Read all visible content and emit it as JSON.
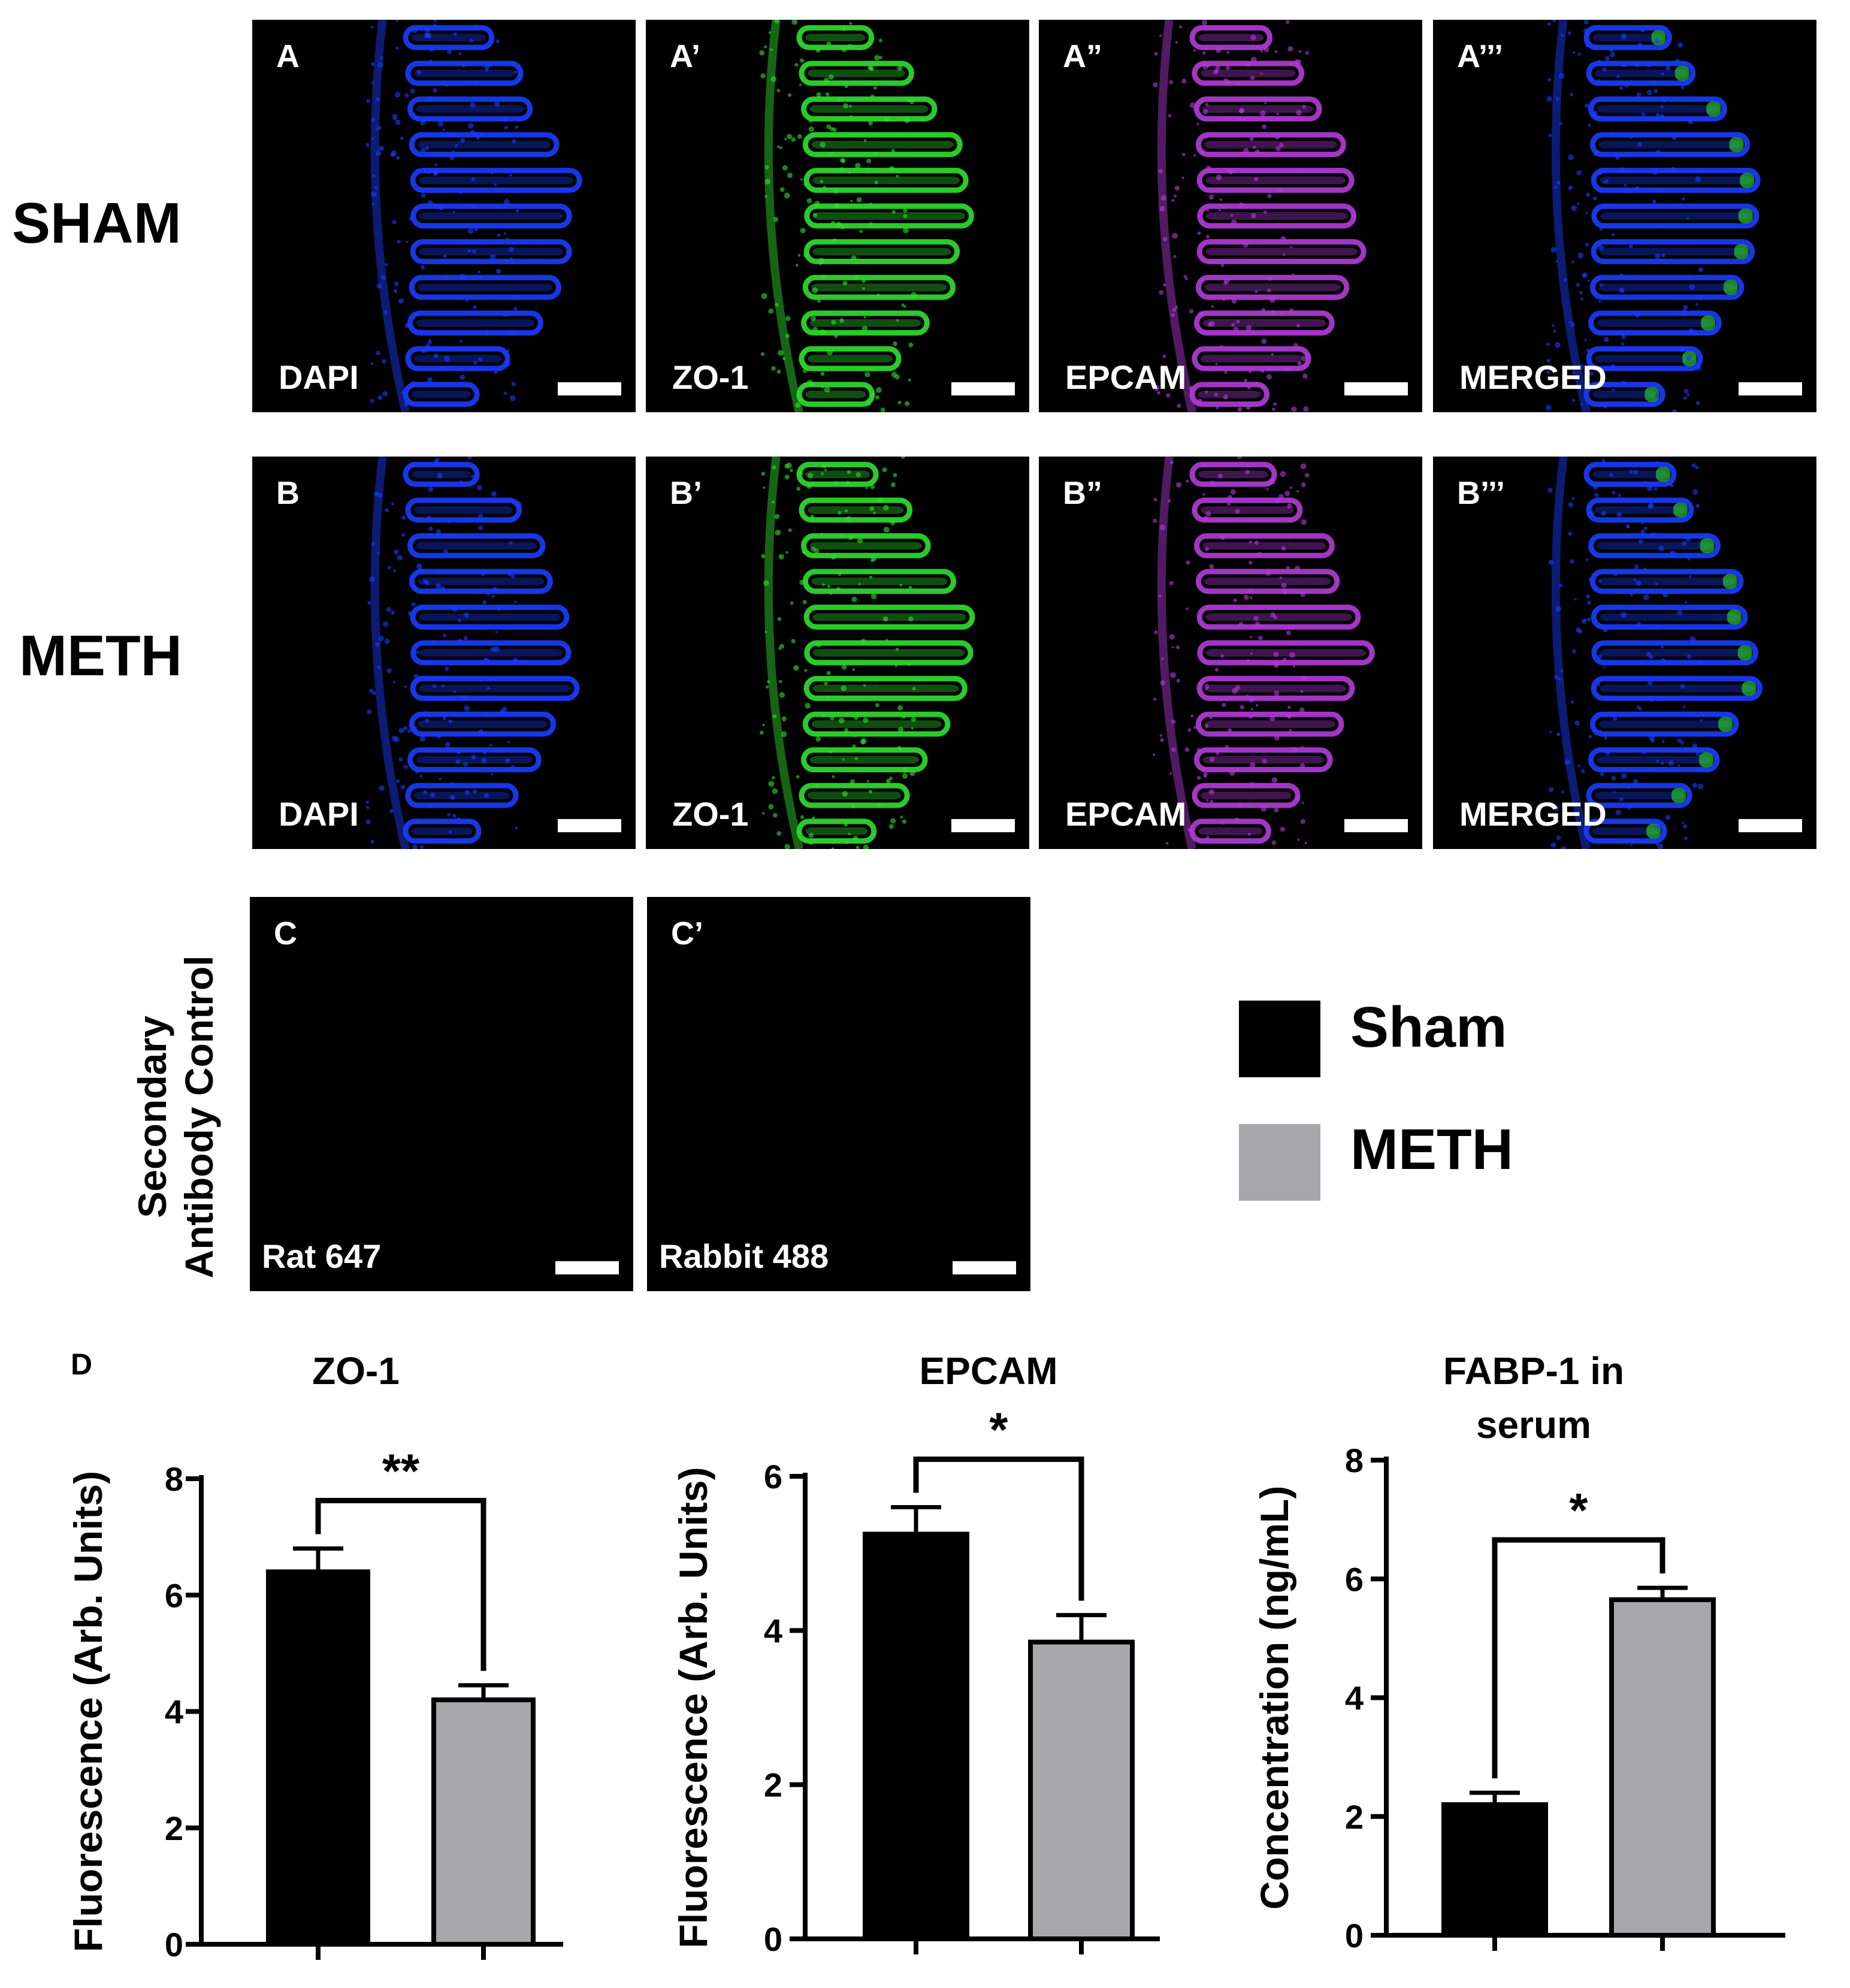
{
  "rows": {
    "sham": "SHAM",
    "meth": "METH",
    "control": "Secondary Antibody Control"
  },
  "panels": {
    "a": [
      {
        "label": "A",
        "stain": "DAPI"
      },
      {
        "label": "A’",
        "stain": "ZO-1"
      },
      {
        "label": "A”",
        "stain": "EPCAM"
      },
      {
        "label": "A’’’",
        "stain": "MERGED"
      }
    ],
    "b": [
      {
        "label": "B",
        "stain": "DAPI"
      },
      {
        "label": "B’",
        "stain": "ZO-1"
      },
      {
        "label": "B”",
        "stain": "EPCAM"
      },
      {
        "label": "B’’’",
        "stain": "MERGED"
      }
    ],
    "c": [
      {
        "label": "C",
        "stain": "Rat 647"
      },
      {
        "label": "C’",
        "stain": "Rabbit 488"
      }
    ]
  },
  "colors": {
    "dapi": "#1a3cff",
    "zo1": "#2fe02f",
    "epcam": "#b23cd9",
    "sham": "#000000",
    "meth": "#a8a7ab"
  },
  "legend": [
    {
      "label": "Sham",
      "color": "#000000"
    },
    {
      "label": "METH",
      "color": "#a8a7ab"
    }
  ],
  "panel_d_label": "D",
  "chart_data": [
    {
      "type": "bar",
      "title": "ZO-1",
      "ylabel": "Fluorescence (Arb. Units)",
      "ylim": [
        0,
        8
      ],
      "yticks": [
        0,
        2,
        4,
        6,
        8
      ],
      "categories": [
        "Sham",
        "METH"
      ],
      "values": [
        6.4,
        4.2
      ],
      "errors": [
        0.4,
        0.25
      ],
      "significance": "**"
    },
    {
      "type": "bar",
      "title": "EPCAM",
      "ylabel": "Fluorescence (Arb. Units)",
      "ylim": [
        0,
        6
      ],
      "yticks": [
        0,
        2,
        4,
        6
      ],
      "categories": [
        "Sham",
        "METH"
      ],
      "values": [
        5.25,
        3.85
      ],
      "errors": [
        0.35,
        0.35
      ],
      "significance": "*"
    },
    {
      "type": "bar",
      "title": "FABP-1 in serum",
      "title_lines": [
        "FABP-1 in",
        "serum"
      ],
      "ylabel": "Concentration (ng/mL)",
      "ylim": [
        0,
        8
      ],
      "yticks": [
        0,
        2,
        4,
        6,
        8
      ],
      "categories": [
        "Sham",
        "METH"
      ],
      "values": [
        2.2,
        5.65
      ],
      "errors": [
        0.2,
        0.2
      ],
      "significance": "*"
    }
  ]
}
